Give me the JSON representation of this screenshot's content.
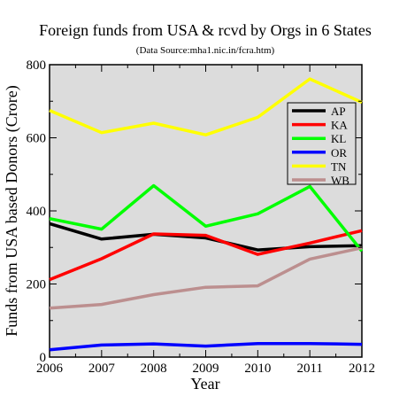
{
  "chart_data": {
    "type": "line",
    "title": "Foreign funds from USA & rcvd by Orgs in 6 States",
    "subtitle": "(Data Source:mha1.nic.in/fcra.htm)",
    "xlabel": "Year",
    "ylabel": "Funds from USA based Donors (Crore)",
    "x": [
      2006,
      2007,
      2008,
      2009,
      2010,
      2011,
      2012
    ],
    "xlim": [
      2006,
      2012
    ],
    "ylim": [
      0,
      800
    ],
    "x_ticks": [
      "2006",
      "2007",
      "2008",
      "2009",
      "2010",
      "2011",
      "2012"
    ],
    "y_ticks": [
      "0",
      "200",
      "400",
      "600",
      "800"
    ],
    "grid": false,
    "legend_position": "top-right",
    "background_color": "#dcdcdc",
    "series": [
      {
        "name": "AP",
        "color": "#000000",
        "values": [
          365,
          323,
          336,
          326,
          293,
          302,
          305
        ]
      },
      {
        "name": "KA",
        "color": "#ff0000",
        "values": [
          212,
          269,
          337,
          333,
          281,
          312,
          346
        ]
      },
      {
        "name": "KL",
        "color": "#00ff00",
        "values": [
          379,
          350,
          469,
          358,
          392,
          467,
          290
        ]
      },
      {
        "name": "OR",
        "color": "#0000ff",
        "values": [
          20,
          33,
          36,
          30,
          37,
          37,
          35
        ]
      },
      {
        "name": "TN",
        "color": "#ffff00",
        "values": [
          675,
          614,
          640,
          608,
          656,
          761,
          697
        ]
      },
      {
        "name": "WB",
        "color": "#bc8f8f",
        "values": [
          134,
          144,
          171,
          191,
          195,
          268,
          299
        ]
      }
    ]
  }
}
